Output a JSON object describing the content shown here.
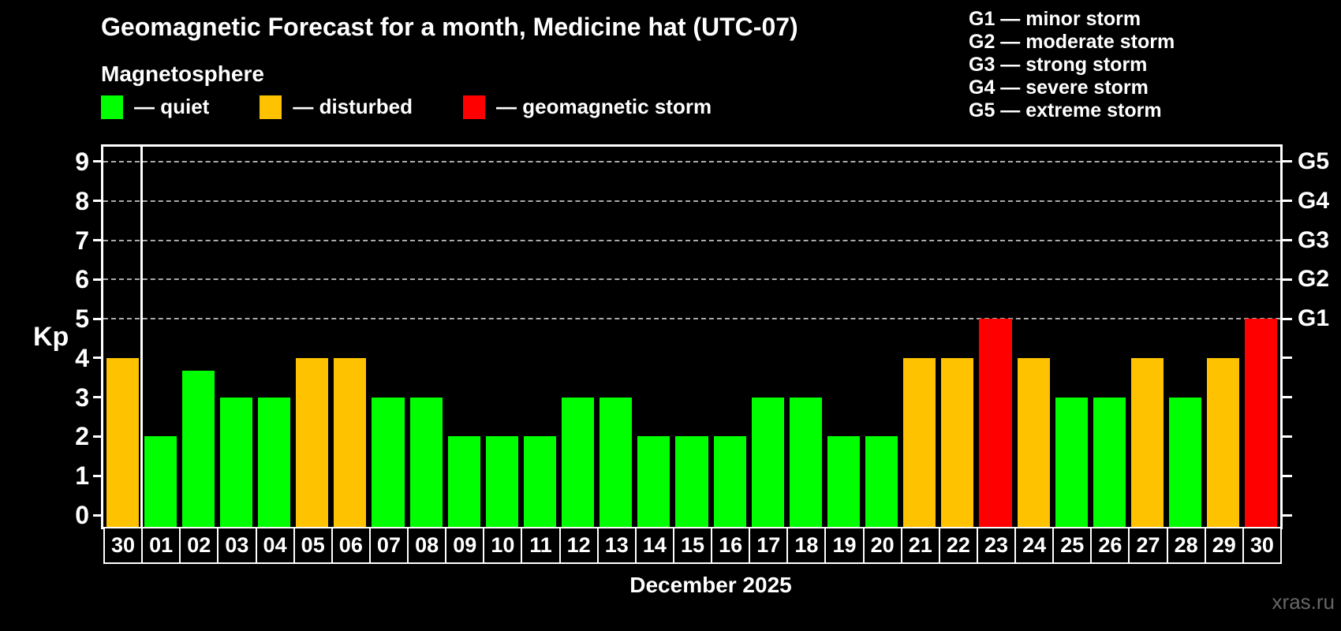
{
  "header": {
    "title": "Geomagnetic Forecast for a month, Medicine hat (UTC-07)",
    "subtitle": "Magnetosphere"
  },
  "legend": {
    "items": [
      {
        "key": "quiet",
        "label": "— quiet",
        "color": "#00ff00"
      },
      {
        "key": "disturbed",
        "label": "— disturbed",
        "color": "#ffc200"
      },
      {
        "key": "storm",
        "label": "— geomagnetic storm",
        "color": "#ff0000"
      }
    ]
  },
  "storm_scale_legend": {
    "items": [
      "G1 — minor storm",
      "G2 — moderate storm",
      "G3 — strong storm",
      "G4 — severe storm",
      "G5 — extreme storm"
    ]
  },
  "chart_data": {
    "type": "bar",
    "title": "Geomagnetic Forecast for a month, Medicine hat (UTC-07)",
    "x_axis": {
      "label": "December 2025",
      "categories": [
        "30",
        "01",
        "02",
        "03",
        "04",
        "05",
        "06",
        "07",
        "08",
        "09",
        "10",
        "11",
        "12",
        "13",
        "14",
        "15",
        "16",
        "17",
        "18",
        "19",
        "20",
        "21",
        "22",
        "23",
        "24",
        "25",
        "26",
        "27",
        "28",
        "29",
        "30"
      ]
    },
    "y_axis": {
      "label": "Kp",
      "min": 0,
      "max": 9,
      "ticks": [
        0,
        1,
        2,
        3,
        4,
        5,
        6,
        7,
        8,
        9
      ]
    },
    "right_axis": {
      "ticks": [
        0,
        1,
        2,
        3,
        4,
        5,
        6,
        7,
        8,
        9
      ],
      "labels": [
        {
          "value": 5,
          "label": "G1"
        },
        {
          "value": 6,
          "label": "G2"
        },
        {
          "value": 7,
          "label": "G3"
        },
        {
          "value": 8,
          "label": "G4"
        },
        {
          "value": 9,
          "label": "G5"
        }
      ]
    },
    "gridlines": [
      5,
      6,
      7,
      8,
      9
    ],
    "grid": true,
    "separator_after_index": 0,
    "bars": [
      {
        "day": "30",
        "value": 4,
        "status": "disturbed"
      },
      {
        "day": "01",
        "value": 2,
        "status": "quiet"
      },
      {
        "day": "02",
        "value": 3.67,
        "status": "quiet"
      },
      {
        "day": "03",
        "value": 3,
        "status": "quiet"
      },
      {
        "day": "04",
        "value": 3,
        "status": "quiet"
      },
      {
        "day": "05",
        "value": 4,
        "status": "disturbed"
      },
      {
        "day": "06",
        "value": 4,
        "status": "disturbed"
      },
      {
        "day": "07",
        "value": 3,
        "status": "quiet"
      },
      {
        "day": "08",
        "value": 3,
        "status": "quiet"
      },
      {
        "day": "09",
        "value": 2,
        "status": "quiet"
      },
      {
        "day": "10",
        "value": 2,
        "status": "quiet"
      },
      {
        "day": "11",
        "value": 2,
        "status": "quiet"
      },
      {
        "day": "12",
        "value": 3,
        "status": "quiet"
      },
      {
        "day": "13",
        "value": 3,
        "status": "quiet"
      },
      {
        "day": "14",
        "value": 2,
        "status": "quiet"
      },
      {
        "day": "15",
        "value": 2,
        "status": "quiet"
      },
      {
        "day": "16",
        "value": 2,
        "status": "quiet"
      },
      {
        "day": "17",
        "value": 3,
        "status": "quiet"
      },
      {
        "day": "18",
        "value": 3,
        "status": "quiet"
      },
      {
        "day": "19",
        "value": 2,
        "status": "quiet"
      },
      {
        "day": "20",
        "value": 2,
        "status": "quiet"
      },
      {
        "day": "21",
        "value": 4,
        "status": "disturbed"
      },
      {
        "day": "22",
        "value": 4,
        "status": "disturbed"
      },
      {
        "day": "23",
        "value": 5,
        "status": "storm"
      },
      {
        "day": "24",
        "value": 4,
        "status": "disturbed"
      },
      {
        "day": "25",
        "value": 3,
        "status": "quiet"
      },
      {
        "day": "26",
        "value": 3,
        "status": "quiet"
      },
      {
        "day": "27",
        "value": 4,
        "status": "disturbed"
      },
      {
        "day": "28",
        "value": 3,
        "status": "quiet"
      },
      {
        "day": "29",
        "value": 4,
        "status": "disturbed"
      },
      {
        "day": "30",
        "value": 5,
        "status": "storm"
      }
    ]
  },
  "watermark": "xras.ru"
}
